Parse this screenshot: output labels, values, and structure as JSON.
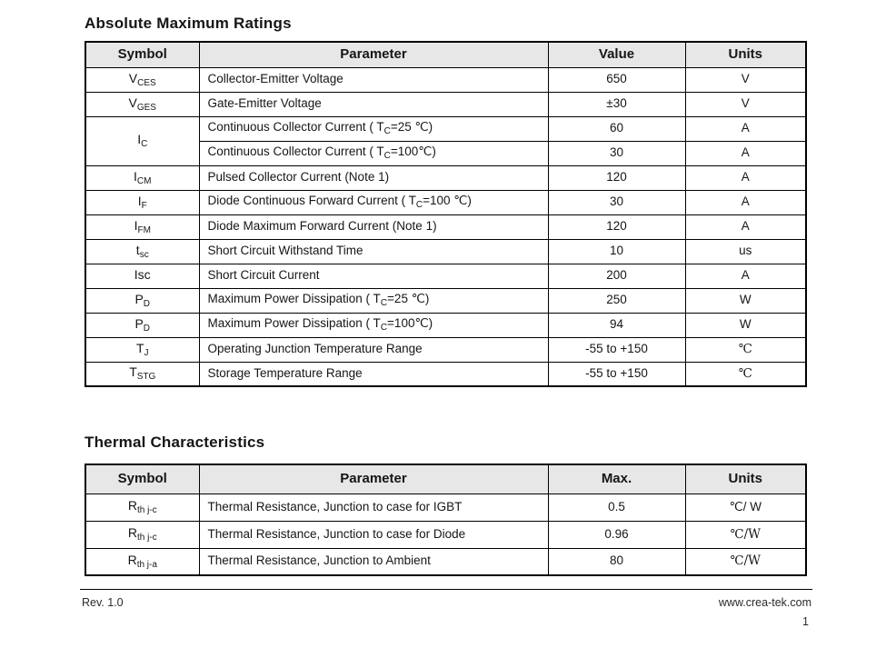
{
  "colors": {
    "header_bg": "#e7e7e7",
    "border": "#000000",
    "text": "#161616"
  },
  "section_abs": {
    "title": "Absolute Maximum Ratings",
    "headers": {
      "symbol": "Symbol",
      "parameter": "Parameter",
      "value": "Value",
      "units": "Units"
    },
    "rows": [
      {
        "sym": "V",
        "sub": "CES",
        "p1": "Collector-Emitter Voltage",
        "value": "650",
        "units": "V"
      },
      {
        "sym": "V",
        "sub": "GES",
        "p1": "Gate-Emitter Voltage",
        "value": "±30",
        "units": "V"
      },
      {
        "sym": "I",
        "sub": "C",
        "p1": "Continuous Collector Current ( T",
        "p2": "C",
        "p3": "=25 ℃)",
        "value": "60",
        "units": "A"
      },
      {
        "p1": "Continuous Collector Current  ( T",
        "p2": "C",
        "p3": "=100℃)",
        "value": "30",
        "units": "A"
      },
      {
        "sym": "I",
        "sub": "CM",
        "p1": "Pulsed Collector Current (Note 1)",
        "value": "120",
        "units": "A"
      },
      {
        "sym": "I",
        "sub": "F",
        "p1": "Diode Continuous Forward Current ( T",
        "p2": "C",
        "p3": "=100 ℃)",
        "value": "30",
        "units": "A"
      },
      {
        "sym": "I",
        "sub": "FM",
        "p1": "Diode Maximum Forward Current (Note 1)",
        "value": "120",
        "units": "A"
      },
      {
        "sym": "t",
        "sub": "sc",
        "p1": "Short Circuit Withstand Time",
        "value": "10",
        "units": "us"
      },
      {
        "sym": "Isc",
        "sub": "",
        "p1": "Short Circuit Current",
        "value": "200",
        "units": "A"
      },
      {
        "sym": "P",
        "sub": "D",
        "p1": "Maximum Power Dissipation ( T",
        "p2": "C",
        "p3": "=25 ℃)",
        "value": "250",
        "units": "W"
      },
      {
        "sym": "P",
        "sub": "D",
        "p1": "Maximum Power Dissipation ( T",
        "p2": "C",
        "p3": "=100℃)",
        "value": "94",
        "units": "W"
      },
      {
        "sym": "T",
        "sub": "J",
        "p1": "Operating Junction Temperature Range",
        "value": "-55 to +150",
        "units": "℃"
      },
      {
        "sym": "T",
        "sub": "STG",
        "p1": "Storage Temperature Range",
        "value": "-55 to +150",
        "units": "℃"
      }
    ]
  },
  "section_thermal": {
    "title": "Thermal Characteristics",
    "headers": {
      "symbol": "Symbol",
      "parameter": "Parameter",
      "value": "Max.",
      "units": "Units"
    },
    "rows": [
      {
        "sym": "R",
        "sub": "th j-c",
        "p1": "Thermal Resistance, Junction to case for IGBT",
        "value": "0.5",
        "units": "℃/ W"
      },
      {
        "sym": "R",
        "sub": "th j-c",
        "p1": "Thermal Resistance, Junction to case for Diode",
        "value": "0.96",
        "units": "℃/W"
      },
      {
        "sym": "R",
        "sub": "th j-a",
        "p1": "Thermal Resistance, Junction to Ambient",
        "value": "80",
        "units": "℃/W"
      }
    ]
  },
  "footer": {
    "revision": "Rev. 1.0",
    "website": "www.crea-tek.com",
    "page_number": "1"
  }
}
